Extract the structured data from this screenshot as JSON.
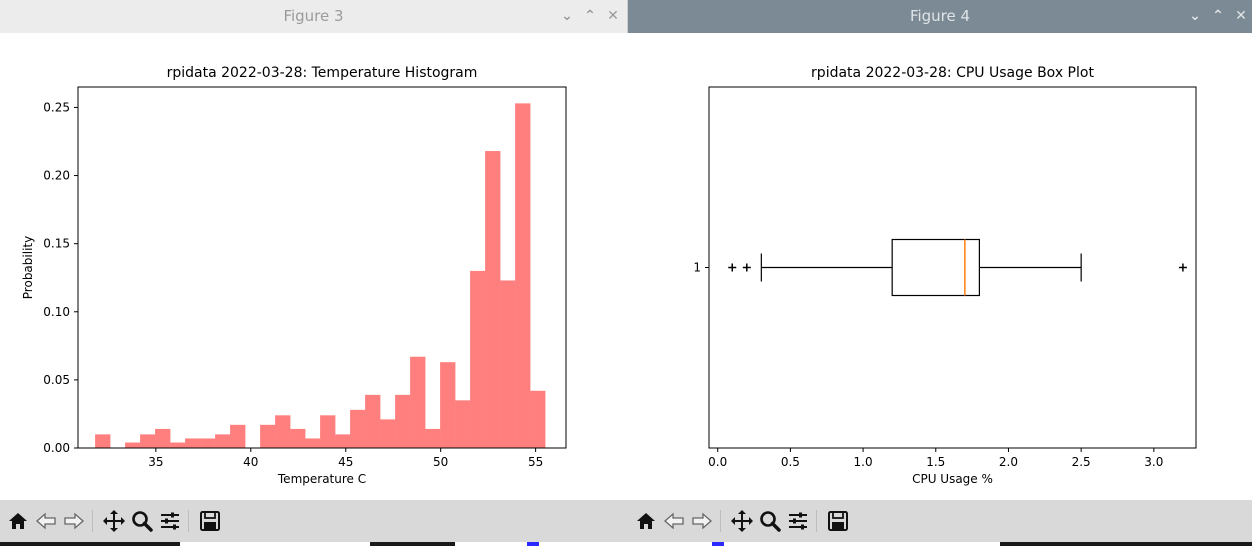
{
  "windows": [
    {
      "title": "Figure 3",
      "controls": [
        "⌄",
        "⌃",
        "✕"
      ]
    },
    {
      "title": "Figure 4",
      "controls": [
        "⌄",
        "⌃",
        "✕"
      ]
    }
  ],
  "toolbar": {
    "icons": [
      "home-icon",
      "back-icon",
      "forward-icon",
      "pan-icon",
      "zoom-icon",
      "configure-subplots-icon",
      "save-icon"
    ]
  },
  "chart_data": [
    {
      "type": "bar",
      "subtype": "histogram",
      "title": "rpidata 2022-03-28: Temperature Histogram",
      "xlabel": "Temperature C",
      "ylabel": "Probability",
      "xlim": [
        30.9,
        56.6
      ],
      "ylim": [
        0,
        0.265
      ],
      "xticks": [
        35,
        40,
        45,
        50,
        55
      ],
      "yticks": [
        0.0,
        0.05,
        0.1,
        0.15,
        0.2,
        0.25
      ],
      "ytick_labels": [
        "0.00",
        "0.05",
        "0.10",
        "0.15",
        "0.20",
        "0.25"
      ],
      "bin_start": 31.8,
      "bin_width": 0.79,
      "values": [
        0.01,
        0.0,
        0.004,
        0.01,
        0.014,
        0.004,
        0.007,
        0.007,
        0.01,
        0.017,
        0.0,
        0.017,
        0.024,
        0.014,
        0.007,
        0.024,
        0.01,
        0.028,
        0.039,
        0.021,
        0.039,
        0.067,
        0.014,
        0.063,
        0.035,
        0.13,
        0.218,
        0.123,
        0.253,
        0.042
      ],
      "color": "#ff7f7f",
      "grid": false
    },
    {
      "type": "boxplot",
      "orientation": "horizontal",
      "title": "rpidata 2022-03-28: CPU Usage Box Plot",
      "xlabel": "CPU Usage %",
      "xlim": [
        -0.06,
        3.29
      ],
      "xticks": [
        0.0,
        0.5,
        1.0,
        1.5,
        2.0,
        2.5,
        3.0
      ],
      "xtick_labels": [
        "0.0",
        "0.5",
        "1.0",
        "1.5",
        "2.0",
        "2.5",
        "3.0"
      ],
      "category": "1",
      "whisker_low": 0.3,
      "q1": 1.2,
      "median": 1.7,
      "q3": 1.8,
      "whisker_high": 2.5,
      "outliers": [
        0.1,
        0.2,
        3.2
      ],
      "median_color": "#ff7f0e",
      "grid": false
    }
  ]
}
